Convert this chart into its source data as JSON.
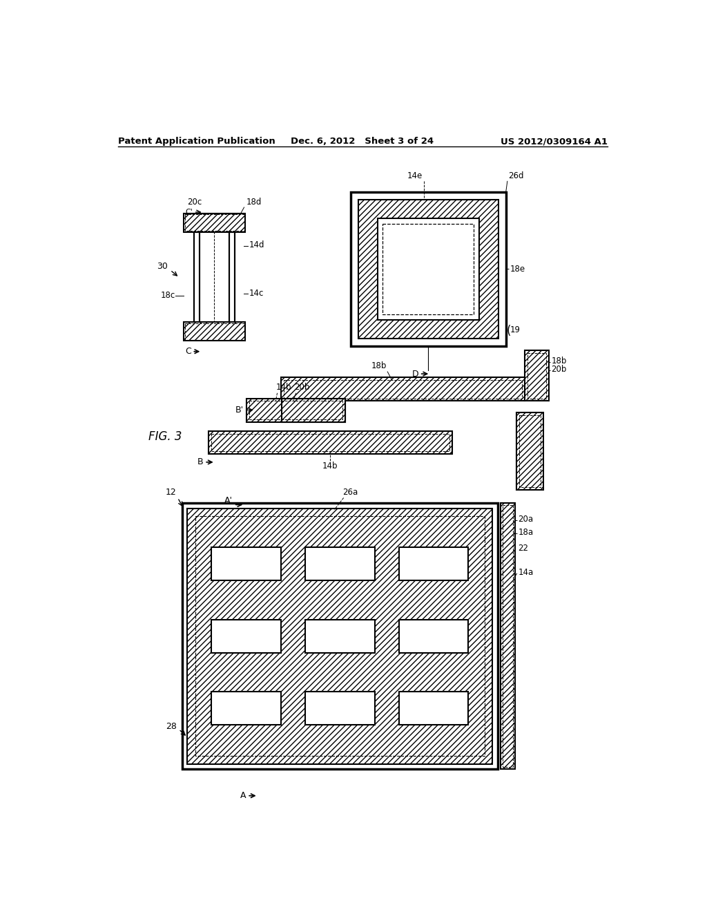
{
  "title_left": "Patent Application Publication",
  "title_mid": "Dec. 6, 2012   Sheet 3 of 24",
  "title_right": "US 2012/0309164 A1",
  "fig_label": "FIG. 3",
  "bg_color": "#ffffff",
  "line_color": "#000000"
}
